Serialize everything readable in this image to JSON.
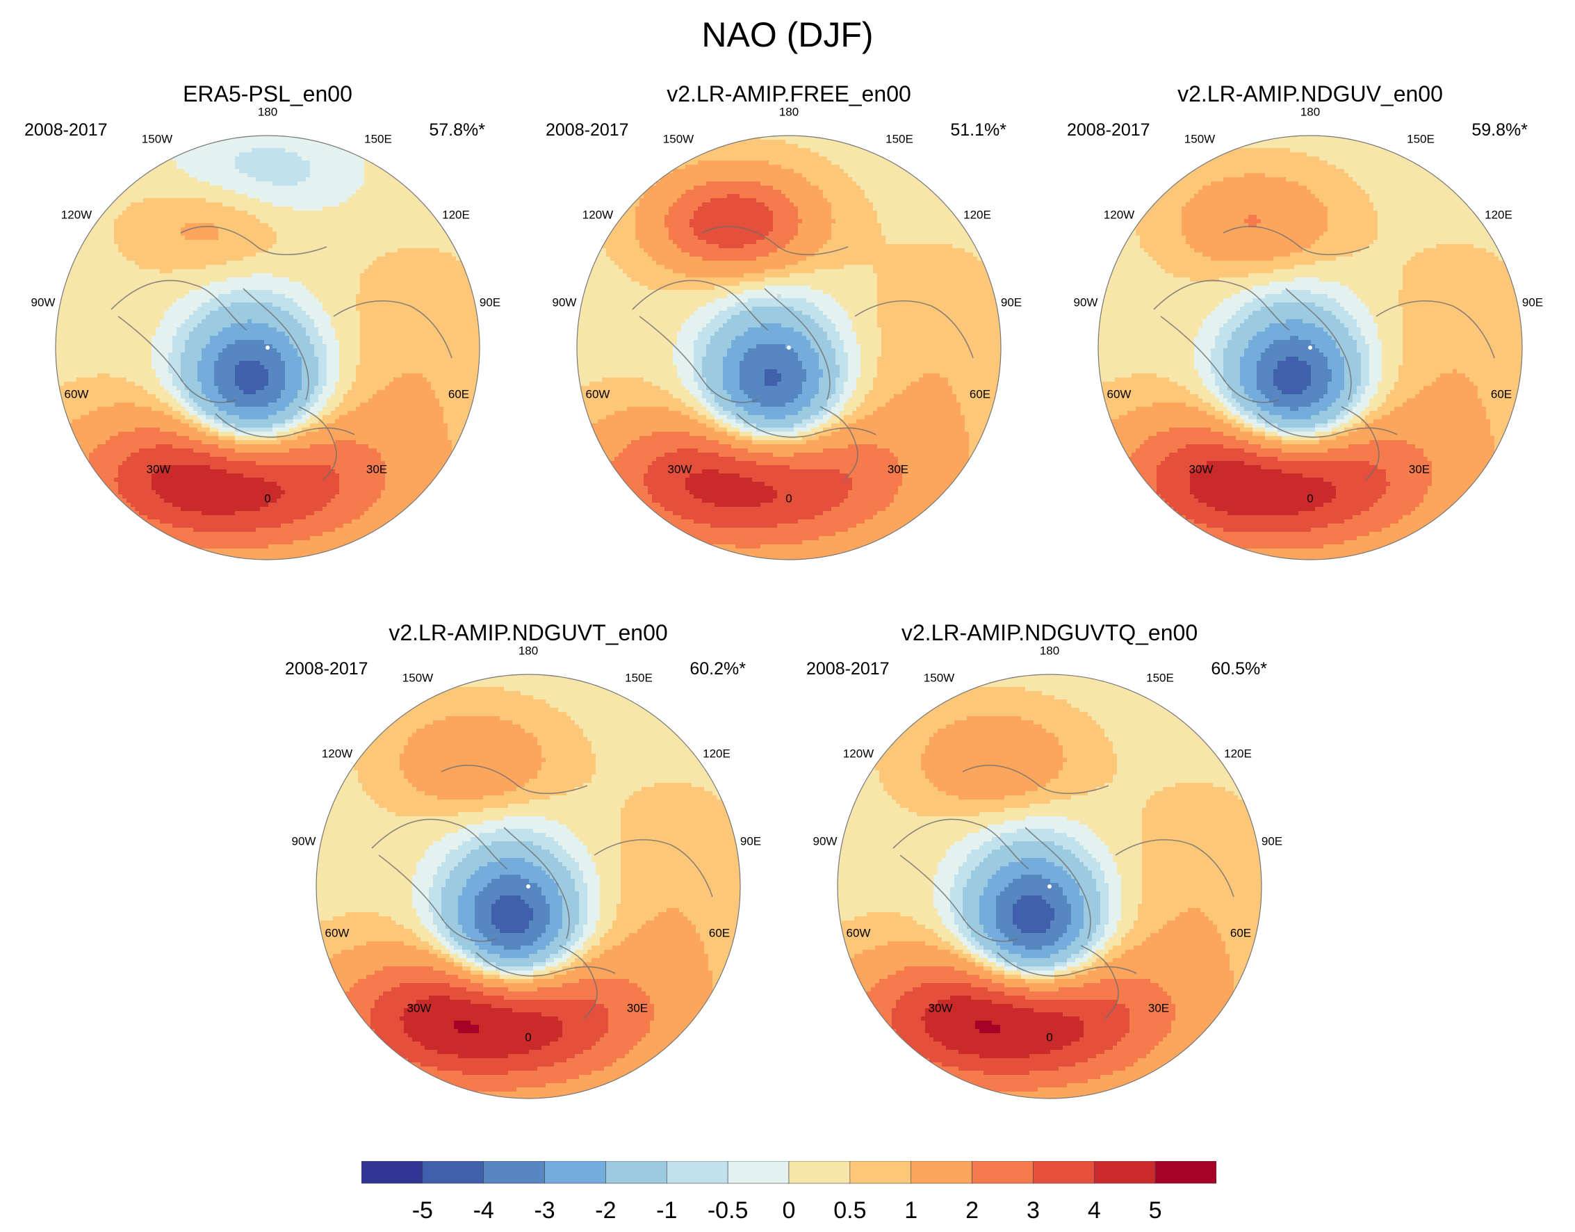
{
  "figure": {
    "title": "NAO (DJF)"
  },
  "colors": {
    "levels": [
      "#313695",
      "#4160ac",
      "#5687c1",
      "#74addc",
      "#9ccae1",
      "#c1e2ed",
      "#e3f1ef",
      "#f7e5aa",
      "#fdc779",
      "#fca55d",
      "#f57b4d",
      "#e4503c",
      "#cb2a2a",
      "#a50026"
    ],
    "land_outline": "#6e6e6e",
    "pole_dot": "#ffffff"
  },
  "longitude_labels": [
    "180",
    "150E",
    "120E",
    "90E",
    "60E",
    "30E",
    "0",
    "30W",
    "60W",
    "90W",
    "120W",
    "150W"
  ],
  "panels": [
    {
      "title": "ERA5-PSL_en00",
      "period": "2008-2017",
      "variance": "57.8%*",
      "neg_strength": 5.3,
      "pos_strength": 5.2,
      "pacific_pos": 1.0,
      "pacific_neg": -1.2
    },
    {
      "title": "v2.LR-AMIP.FREE_en00",
      "period": "2008-2017",
      "variance": "51.1%*",
      "neg_strength": 5.0,
      "pos_strength": 4.8,
      "pacific_pos": 3.6,
      "pacific_neg": 0.0
    },
    {
      "title": "v2.LR-AMIP.NDGUV_en00",
      "period": "2008-2017",
      "variance": "59.8%*",
      "neg_strength": 5.4,
      "pos_strength": 5.4,
      "pacific_pos": 1.7,
      "pacific_neg": 0.0
    },
    {
      "title": "v2.LR-AMIP.NDGUVT_en00",
      "period": "2008-2017",
      "variance": "60.2%*",
      "neg_strength": 5.5,
      "pos_strength": 5.6,
      "pacific_pos": 1.6,
      "pacific_neg": 0.0
    },
    {
      "title": "v2.LR-AMIP.NDGUVTQ_en00",
      "period": "2008-2017",
      "variance": "60.5%*",
      "neg_strength": 5.5,
      "pos_strength": 5.6,
      "pacific_pos": 1.6,
      "pacific_neg": 0.0
    }
  ],
  "colorbar": {
    "labels": [
      "-5",
      "-4",
      "-3",
      "-2",
      "-1",
      "-0.5",
      "0",
      "0.5",
      "1",
      "2",
      "3",
      "4",
      "5"
    ]
  }
}
